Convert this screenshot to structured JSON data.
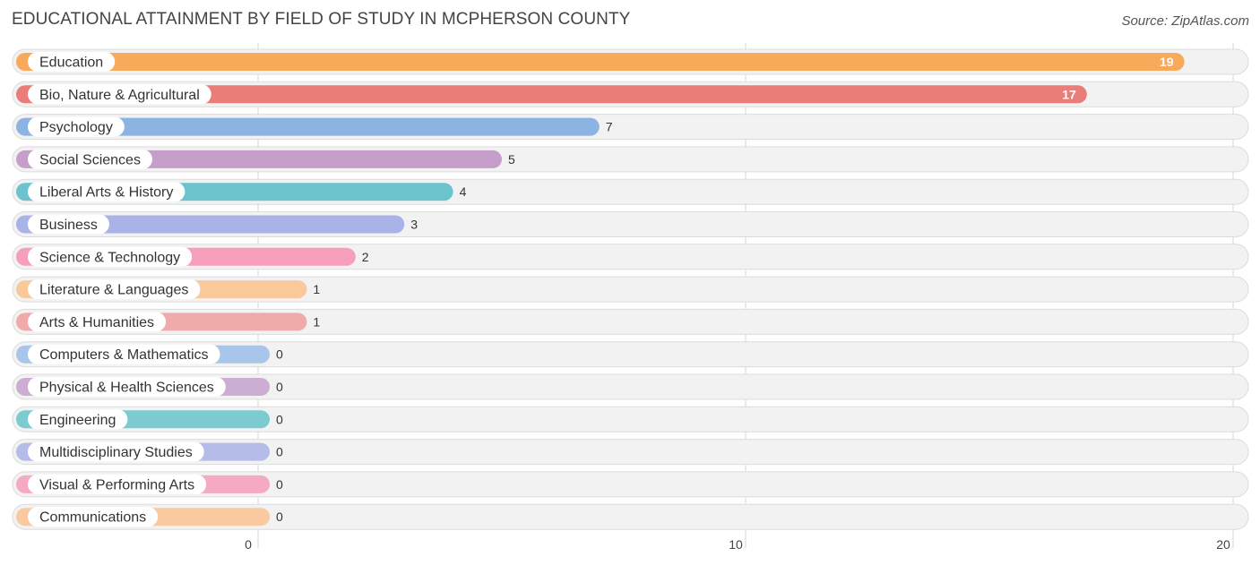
{
  "header": {
    "title": "EDUCATIONAL ATTAINMENT BY FIELD OF STUDY IN MCPHERSON COUNTY",
    "source": "Source: ZipAtlas.com"
  },
  "chart_data": {
    "type": "bar",
    "orientation": "horizontal",
    "title": "EDUCATIONAL ATTAINMENT BY FIELD OF STUDY IN MCPHERSON COUNTY",
    "xlabel": "",
    "ylabel": "",
    "xlim": [
      0,
      20
    ],
    "x_ticks": [
      "0",
      "10",
      "20"
    ],
    "grid": true,
    "categories": [
      "Education",
      "Bio, Nature & Agricultural",
      "Psychology",
      "Social Sciences",
      "Liberal Arts & History",
      "Business",
      "Science & Technology",
      "Literature & Languages",
      "Arts & Humanities",
      "Computers & Mathematics",
      "Physical & Health Sciences",
      "Engineering",
      "Multidisciplinary Studies",
      "Visual & Performing Arts",
      "Communications"
    ],
    "values": [
      19,
      17,
      7,
      5,
      4,
      3,
      2,
      1,
      1,
      0,
      0,
      0,
      0,
      0,
      0
    ],
    "colors": [
      "#f8a95a",
      "#ea7c7a",
      "#8db3e2",
      "#c59fca",
      "#6cc3cb",
      "#a9b3e8",
      "#f69fbb",
      "#f9c99c",
      "#f0aaa9",
      "#a8c6ea",
      "#cdaed3",
      "#7ccbd1",
      "#b5bcea",
      "#f5a9c2",
      "#f9c9a0"
    ]
  }
}
